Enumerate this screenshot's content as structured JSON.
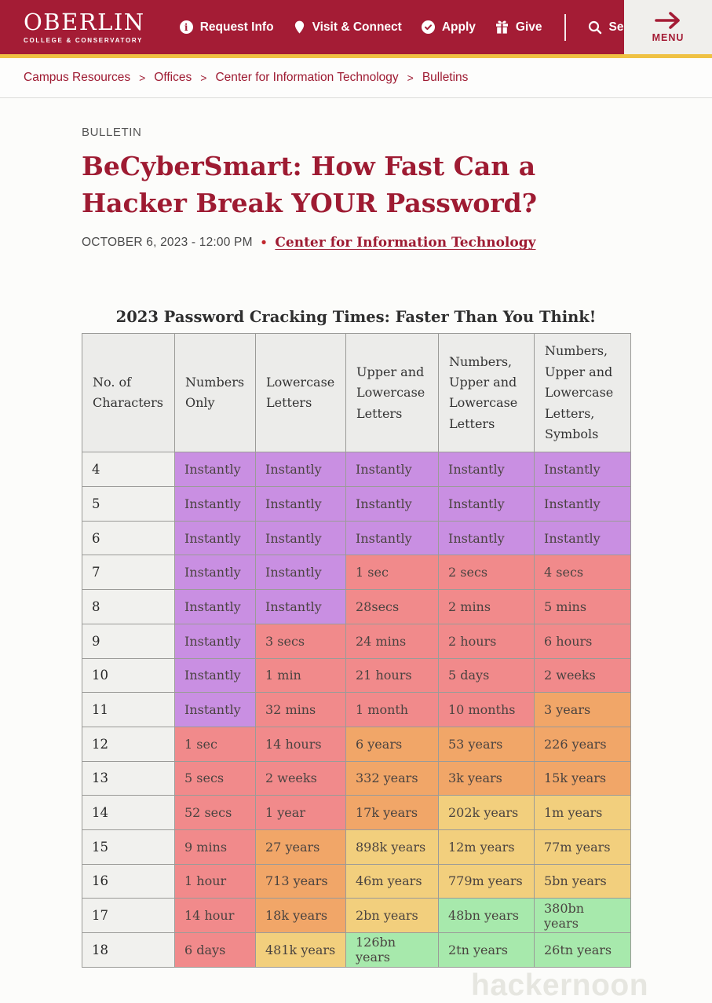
{
  "header": {
    "logo_title": "OBERLIN",
    "logo_subtitle": "COLLEGE & CONSERVATORY",
    "nav": [
      {
        "label": "Request Info",
        "icon": "info-icon"
      },
      {
        "label": "Visit & Connect",
        "icon": "pin-icon"
      },
      {
        "label": "Apply",
        "icon": "check-icon"
      },
      {
        "label": "Give",
        "icon": "gift-icon"
      },
      {
        "label": "Search",
        "icon": "search-icon"
      }
    ],
    "menu_label": "MENU",
    "info_glyph": "i"
  },
  "colors": {
    "brand_red": "#a41c35",
    "accent_gold": "#efc143",
    "link_red": "#9e1b32",
    "cell_purple": "#c98fe2",
    "cell_pink": "#f18a8b",
    "cell_orange": "#f1a668",
    "cell_yellow": "#f2cf7d",
    "cell_green": "#a7e9ac"
  },
  "breadcrumb": {
    "separator": ">",
    "items": [
      "Campus Resources",
      "Offices",
      "Center for Information Technology",
      "Bulletins"
    ]
  },
  "article": {
    "eyebrow": "BULLETIN",
    "title": "BeCyberSmart: How Fast Can a Hacker Break YOUR Password?",
    "date": "OCTOBER 6, 2023 - 12:00 PM",
    "separator": "•",
    "department": "Center for Information Technology"
  },
  "table": {
    "caption": "2023 Password Cracking Times: Faster Than You Think!",
    "columns": [
      "No. of Characters",
      "Numbers Only",
      "Lowercase Letters",
      "Upper and Lowercase Letters",
      "Numbers, Upper and Lowercase Letters",
      "Numbers, Upper and Lowercase Letters, Symbols"
    ],
    "rows": [
      {
        "chars": "4",
        "cells": [
          [
            "Instantly",
            "purple"
          ],
          [
            "Instantly",
            "purple"
          ],
          [
            "Instantly",
            "purple"
          ],
          [
            "Instantly",
            "purple"
          ],
          [
            "Instantly",
            "purple"
          ]
        ]
      },
      {
        "chars": "5",
        "cells": [
          [
            "Instantly",
            "purple"
          ],
          [
            "Instantly",
            "purple"
          ],
          [
            "Instantly",
            "purple"
          ],
          [
            "Instantly",
            "purple"
          ],
          [
            "Instantly",
            "purple"
          ]
        ]
      },
      {
        "chars": "6",
        "cells": [
          [
            "Instantly",
            "purple"
          ],
          [
            "Instantly",
            "purple"
          ],
          [
            "Instantly",
            "purple"
          ],
          [
            "Instantly",
            "purple"
          ],
          [
            "Instantly",
            "purple"
          ]
        ]
      },
      {
        "chars": "7",
        "cells": [
          [
            "Instantly",
            "purple"
          ],
          [
            "Instantly",
            "purple"
          ],
          [
            "1 sec",
            "pink"
          ],
          [
            "2 secs",
            "pink"
          ],
          [
            "4 secs",
            "pink"
          ]
        ]
      },
      {
        "chars": "8",
        "cells": [
          [
            "Instantly",
            "purple"
          ],
          [
            "Instantly",
            "purple"
          ],
          [
            "28secs",
            "pink"
          ],
          [
            "2 mins",
            "pink"
          ],
          [
            "5 mins",
            "pink"
          ]
        ]
      },
      {
        "chars": "9",
        "cells": [
          [
            "Instantly",
            "purple"
          ],
          [
            "3 secs",
            "pink"
          ],
          [
            "24 mins",
            "pink"
          ],
          [
            "2 hours",
            "pink"
          ],
          [
            "6 hours",
            "pink"
          ]
        ]
      },
      {
        "chars": "10",
        "cells": [
          [
            "Instantly",
            "purple"
          ],
          [
            "1 min",
            "pink"
          ],
          [
            "21 hours",
            "pink"
          ],
          [
            "5 days",
            "pink"
          ],
          [
            "2 weeks",
            "pink"
          ]
        ]
      },
      {
        "chars": "11",
        "cells": [
          [
            "Instantly",
            "purple"
          ],
          [
            "32 mins",
            "pink"
          ],
          [
            "1 month",
            "pink"
          ],
          [
            "10 months",
            "pink"
          ],
          [
            "3 years",
            "orange"
          ]
        ]
      },
      {
        "chars": "12",
        "cells": [
          [
            "1 sec",
            "pink"
          ],
          [
            "14 hours",
            "pink"
          ],
          [
            "6 years",
            "orange"
          ],
          [
            "53 years",
            "orange"
          ],
          [
            "226 years",
            "orange"
          ]
        ]
      },
      {
        "chars": "13",
        "cells": [
          [
            "5 secs",
            "pink"
          ],
          [
            "2 weeks",
            "pink"
          ],
          [
            "332 years",
            "orange"
          ],
          [
            "3k years",
            "orange"
          ],
          [
            "15k years",
            "orange"
          ]
        ]
      },
      {
        "chars": "14",
        "cells": [
          [
            "52 secs",
            "pink"
          ],
          [
            "1 year",
            "pink"
          ],
          [
            "17k years",
            "orange"
          ],
          [
            "202k years",
            "yellow"
          ],
          [
            "1m years",
            "yellow"
          ]
        ]
      },
      {
        "chars": "15",
        "cells": [
          [
            "9 mins",
            "pink"
          ],
          [
            "27 years",
            "orange"
          ],
          [
            "898k years",
            "yellow"
          ],
          [
            "12m years",
            "yellow"
          ],
          [
            "77m years",
            "yellow"
          ]
        ]
      },
      {
        "chars": "16",
        "cells": [
          [
            "1 hour",
            "pink"
          ],
          [
            "713 years",
            "orange"
          ],
          [
            "46m years",
            "yellow"
          ],
          [
            "779m years",
            "yellow"
          ],
          [
            "5bn years",
            "yellow"
          ]
        ]
      },
      {
        "chars": "17",
        "cells": [
          [
            "14 hour",
            "pink"
          ],
          [
            "18k years",
            "orange"
          ],
          [
            "2bn years",
            "yellow"
          ],
          [
            "48bn years",
            "green"
          ],
          [
            "380bn years",
            "green"
          ]
        ]
      },
      {
        "chars": "18",
        "cells": [
          [
            "6 days",
            "pink"
          ],
          [
            "481k years",
            "yellow"
          ],
          [
            "126bn years",
            "green"
          ],
          [
            "2tn years",
            "green"
          ],
          [
            "26tn years",
            "green"
          ]
        ]
      }
    ]
  },
  "watermark": "hackernoon"
}
